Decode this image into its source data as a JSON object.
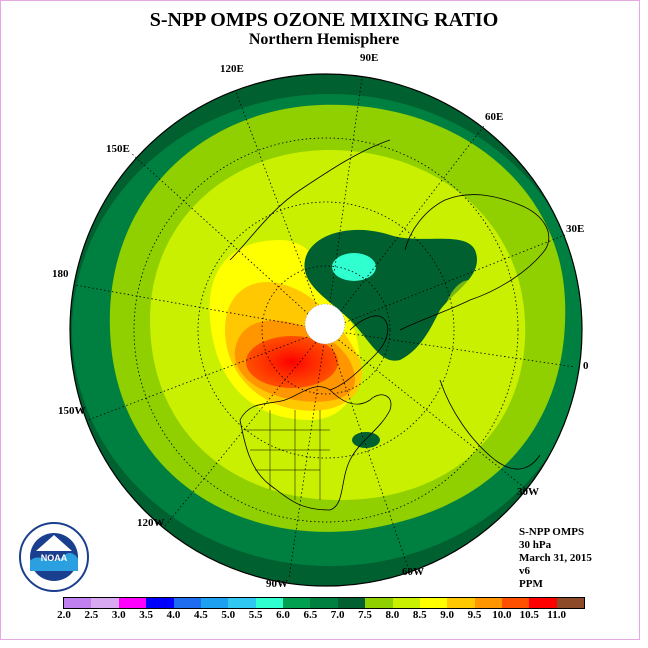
{
  "title": "S-NPP OMPS OZONE MIXING RATIO",
  "subtitle": "Northern Hemisphere",
  "longitude_labels": [
    "90E",
    "60E",
    "30E",
    "0",
    "30W",
    "60W",
    "90W",
    "120W",
    "150W",
    "180",
    "150E",
    "120E"
  ],
  "info": {
    "instrument": "S-NPP OMPS",
    "level": "30 hPa",
    "date": "March 31, 2015",
    "version": "v6",
    "units": "PPM"
  },
  "colorbar": {
    "colors": [
      "#c080f0",
      "#d8a8f0",
      "#ff00ff",
      "#0000ff",
      "#1e6cf0",
      "#1ea0f0",
      "#30c8f0",
      "#30ffd0",
      "#00a050",
      "#008040",
      "#006030",
      "#90d000",
      "#c8f000",
      "#ffff00",
      "#ffc800",
      "#ff9600",
      "#ff5000",
      "#ff0000",
      "#8c4a28"
    ],
    "tick_labels": [
      "2.0",
      "2.5",
      "3.0",
      "3.5",
      "4.0",
      "4.5",
      "5.0",
      "5.5",
      "6.0",
      "6.5",
      "7.0",
      "7.5",
      "8.0",
      "8.5",
      "9.0",
      "9.5",
      "10.0",
      "10.5",
      "11.0"
    ]
  },
  "logo": {
    "text": "NOAA",
    "ring_text": "NATIONAL OCEANIC AND ATMOSPHERIC ADMINISTRATION · U.S. DEPARTMENT OF COMMERCE"
  }
}
